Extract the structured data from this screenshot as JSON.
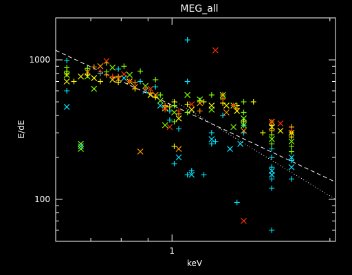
{
  "chart_data": {
    "type": "scatter",
    "title": "MEG_all",
    "xlabel": "keV",
    "ylabel": "E/dE",
    "xscale": "log",
    "yscale": "log",
    "xlim": [
      0.6,
      2.05
    ],
    "ylim": [
      50,
      2000
    ],
    "xticks": [
      {
        "value": 1,
        "label": "1"
      }
    ],
    "yticks": [
      {
        "value": 100,
        "label": "100"
      },
      {
        "value": 1000,
        "label": "1000"
      }
    ],
    "grid": false,
    "colors": {
      "background": "#000000",
      "axes": "#ffffff"
    },
    "series": [
      {
        "marker": "plus",
        "color": "#00e5ff",
        "points": [
          [
            0.63,
            990
          ],
          [
            0.63,
            600
          ],
          [
            0.73,
            800
          ],
          [
            0.79,
            860
          ],
          [
            0.87,
            700
          ],
          [
            0.93,
            640
          ],
          [
            0.99,
            430
          ],
          [
            0.99,
            370
          ],
          [
            1.03,
            320
          ],
          [
            1.07,
            1390
          ],
          [
            1.07,
            700
          ],
          [
            1.13,
            510
          ],
          [
            1.13,
            510
          ],
          [
            1.19,
            300
          ],
          [
            1.19,
            250
          ],
          [
            1.25,
            400
          ],
          [
            1.37,
            370
          ],
          [
            1.37,
            340
          ],
          [
            1.37,
            300
          ],
          [
            1.55,
            230
          ],
          [
            1.55,
            200
          ],
          [
            1.55,
            170
          ],
          [
            1.55,
            140
          ],
          [
            1.55,
            120
          ],
          [
            1.55,
            60
          ],
          [
            1.69,
            190
          ],
          [
            1.69,
            140
          ],
          [
            1.09,
            160
          ],
          [
            1.15,
            150
          ],
          [
            1.33,
            95
          ],
          [
            1.01,
            180
          ],
          [
            1.07,
            150
          ],
          [
            1.21,
            260
          ]
        ]
      },
      {
        "marker": "x",
        "color": "#00e5ff",
        "points": [
          [
            0.63,
            460
          ],
          [
            0.67,
            240
          ],
          [
            0.81,
            740
          ],
          [
            0.89,
            600
          ],
          [
            0.95,
            470
          ],
          [
            1.03,
            200
          ],
          [
            1.09,
            150
          ],
          [
            1.29,
            230
          ],
          [
            1.55,
            160
          ],
          [
            1.55,
            150
          ],
          [
            1.69,
            170
          ],
          [
            1.69,
            200
          ],
          [
            1.35,
            250
          ],
          [
            1.19,
            270
          ]
        ]
      },
      {
        "marker": "plus",
        "color": "#80ff00",
        "points": [
          [
            0.63,
            880
          ],
          [
            0.63,
            830
          ],
          [
            0.69,
            870
          ],
          [
            0.75,
            950
          ],
          [
            0.75,
            820
          ],
          [
            0.81,
            900
          ],
          [
            0.87,
            830
          ],
          [
            0.95,
            560
          ],
          [
            1.01,
            470
          ],
          [
            1.01,
            360
          ],
          [
            1.07,
            420
          ],
          [
            1.13,
            510
          ],
          [
            1.25,
            530
          ],
          [
            1.37,
            500
          ],
          [
            1.37,
            420
          ],
          [
            1.55,
            290
          ],
          [
            1.55,
            250
          ],
          [
            1.69,
            240
          ],
          [
            1.69,
            220
          ],
          [
            0.93,
            720
          ],
          [
            1.19,
            560
          ]
        ]
      },
      {
        "marker": "x",
        "color": "#80ff00",
        "points": [
          [
            0.63,
            780
          ],
          [
            0.69,
            760
          ],
          [
            0.71,
            620
          ],
          [
            0.77,
            880
          ],
          [
            0.83,
            780
          ],
          [
            0.89,
            650
          ],
          [
            0.95,
            510
          ],
          [
            0.97,
            340
          ],
          [
            1.01,
            420
          ],
          [
            1.07,
            560
          ],
          [
            1.13,
            520
          ],
          [
            1.19,
            440
          ],
          [
            1.25,
            560
          ],
          [
            1.31,
            470
          ],
          [
            1.37,
            380
          ],
          [
            1.55,
            270
          ],
          [
            1.69,
            260
          ],
          [
            0.67,
            230
          ],
          [
            0.67,
            250
          ],
          [
            1.37,
            340
          ],
          [
            1.31,
            330
          ]
        ]
      },
      {
        "marker": "plus",
        "color": "#ffff00",
        "points": [
          [
            0.63,
            790
          ],
          [
            0.65,
            700
          ],
          [
            0.69,
            780
          ],
          [
            0.73,
            700
          ],
          [
            0.79,
            690
          ],
          [
            0.85,
            620
          ],
          [
            0.93,
            540
          ],
          [
            0.99,
            460
          ],
          [
            1.01,
            500
          ],
          [
            1.07,
            480
          ],
          [
            1.15,
            500
          ],
          [
            1.25,
            490
          ],
          [
            1.33,
            470
          ],
          [
            1.37,
            360
          ],
          [
            1.49,
            300
          ],
          [
            1.55,
            310
          ],
          [
            1.55,
            340
          ],
          [
            1.69,
            330
          ],
          [
            1.69,
            300
          ],
          [
            1.69,
            280
          ],
          [
            1.01,
            240
          ],
          [
            1.43,
            500
          ]
        ]
      },
      {
        "marker": "x",
        "color": "#ffff00",
        "points": [
          [
            0.63,
            700
          ],
          [
            0.67,
            760
          ],
          [
            0.71,
            740
          ],
          [
            0.77,
            720
          ],
          [
            0.83,
            700
          ],
          [
            0.91,
            560
          ],
          [
            0.97,
            450
          ],
          [
            1.03,
            380
          ],
          [
            1.09,
            440
          ],
          [
            1.19,
            470
          ],
          [
            1.27,
            470
          ],
          [
            1.33,
            430
          ],
          [
            1.55,
            330
          ],
          [
            1.69,
            300
          ],
          [
            1.61,
            310
          ]
        ]
      },
      {
        "marker": "plus",
        "color": "#ff9900",
        "points": [
          [
            0.71,
            890
          ],
          [
            0.75,
            780
          ],
          [
            0.79,
            760
          ],
          [
            0.85,
            690
          ],
          [
            0.91,
            580
          ],
          [
            0.97,
            470
          ],
          [
            1.03,
            410
          ],
          [
            1.13,
            430
          ],
          [
            1.25,
            560
          ],
          [
            1.33,
            450
          ],
          [
            1.55,
            320
          ],
          [
            1.69,
            330
          ]
        ]
      },
      {
        "marker": "x",
        "color": "#ff9900",
        "points": [
          [
            0.69,
            820
          ],
          [
            0.73,
            900
          ],
          [
            0.79,
            730
          ],
          [
            0.85,
            640
          ],
          [
            0.93,
            560
          ],
          [
            1.03,
            230
          ],
          [
            1.13,
            490
          ],
          [
            1.27,
            420
          ],
          [
            1.37,
            310
          ],
          [
            0.87,
            220
          ],
          [
            1.55,
            360
          ]
        ]
      },
      {
        "marker": "plus",
        "color": "#ff3300",
        "points": [
          [
            0.73,
            820
          ],
          [
            0.77,
            760
          ],
          [
            0.83,
            700
          ],
          [
            0.89,
            620
          ],
          [
            0.97,
            440
          ],
          [
            1.03,
            430
          ],
          [
            1.25,
            520
          ],
          [
            1.31,
            470
          ],
          [
            1.55,
            360
          ],
          [
            1.69,
            310
          ]
        ]
      },
      {
        "marker": "x",
        "color": "#ff3300",
        "points": [
          [
            0.75,
            980
          ],
          [
            0.81,
            790
          ],
          [
            0.91,
            620
          ],
          [
            0.99,
            330
          ],
          [
            1.09,
            480
          ],
          [
            1.21,
            1170
          ],
          [
            1.37,
            70
          ],
          [
            1.61,
            350
          ]
        ]
      }
    ],
    "reference_lines": [
      {
        "style": "dashed",
        "color": "#ffffff",
        "points": [
          [
            0.6,
            1170
          ],
          [
            2.05,
            133
          ]
        ]
      },
      {
        "style": "dotted",
        "color": "#ffffff",
        "points": [
          [
            1.0,
            520
          ],
          [
            2.05,
            100
          ]
        ]
      }
    ]
  }
}
